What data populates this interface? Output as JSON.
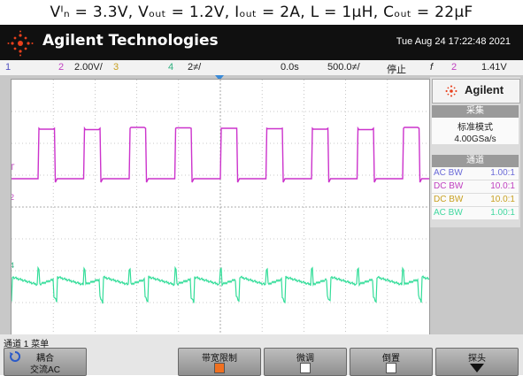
{
  "caption": "Vᴵₙ = 3.3V, Vₒᵤₜ = 1.2V, Iₒᵤₜ = 2A, L = 1μH, Cₒᵤₜ = 22μF",
  "header": {
    "brand": "Agilent Technologies",
    "datetime": "Tue Aug 24 17:22:48 2021"
  },
  "status": {
    "ch1": "1",
    "ch2": "2",
    "ch2_scale": "2.00V/",
    "ch3": "3",
    "ch4": "4",
    "ch4_scale": "2≠/",
    "time_offset": "0.0s",
    "time_scale": "500.0≠/",
    "run_state": "停止",
    "trigger_icon": "f",
    "trigger_ch": "2",
    "trigger_level": "1.41V"
  },
  "panel": {
    "brand": "Agilent",
    "acq_title": "采集",
    "acq_mode": "标准模式",
    "acq_rate": "4.00GSa/s",
    "chan_title": "通道",
    "channels": [
      {
        "coupling": "AC BW",
        "probe": "1.00:1",
        "color": "#6a6ad8"
      },
      {
        "coupling": "DC BW",
        "probe": "10.0:1",
        "color": "#c040c0"
      },
      {
        "coupling": "DC BW",
        "probe": "10.0:1",
        "color": "#c8a020"
      },
      {
        "coupling": "AC BW",
        "probe": "1.00:1",
        "color": "#40d8a0"
      }
    ]
  },
  "grid_markers": {
    "trigger_marker": "T",
    "ch2_marker": "2",
    "ch4_marker": "4"
  },
  "menu": {
    "title": "通道 1 菜单",
    "softkeys": [
      {
        "line1": "耦合",
        "line2": "交流AC"
      },
      {
        "line1": "带宽限制",
        "line2": ""
      },
      {
        "line1": "微调",
        "line2": ""
      },
      {
        "line1": "倒置",
        "line2": ""
      },
      {
        "line1": "探头",
        "line2": ""
      }
    ]
  },
  "waveforms": {
    "ch2_color": "#cc33cc",
    "ch4_color": "#33dd99",
    "pulse_count": 9,
    "duty_cycle": 0.36
  }
}
